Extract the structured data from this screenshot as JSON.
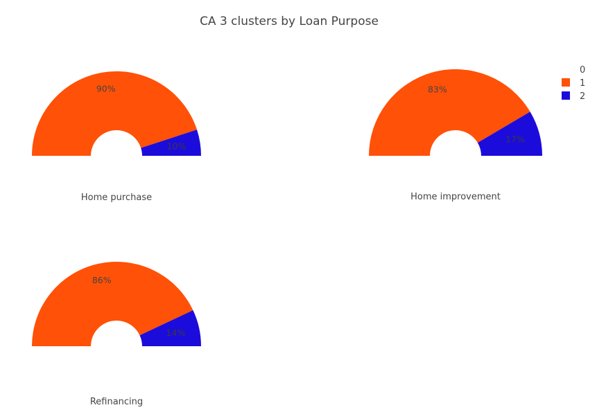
{
  "chart_data": {
    "type": "pie",
    "title": "CA 3 clusters by Loan Purpose",
    "legend": {
      "position": "top-right",
      "entries": [
        {
          "name": "0",
          "color": ""
        },
        {
          "name": "1",
          "color": "#ff5108"
        },
        {
          "name": "2",
          "color": "#1c0cdc"
        }
      ]
    },
    "charts": [
      {
        "name": "Home purchase",
        "values": [
          90,
          10
        ],
        "labels": [
          "90%",
          "10%"
        ],
        "colors": [
          "#ff5108",
          "#1c0cdc"
        ]
      },
      {
        "name": "Home improvement",
        "values": [
          83,
          17
        ],
        "labels": [
          "83%",
          "17%"
        ],
        "colors": [
          "#ff5108",
          "#1c0cdc"
        ]
      },
      {
        "name": "Refinancing",
        "values": [
          86,
          14
        ],
        "labels": [
          "86%",
          "14%"
        ],
        "colors": [
          "#ff5108",
          "#1c0cdc"
        ]
      }
    ]
  }
}
